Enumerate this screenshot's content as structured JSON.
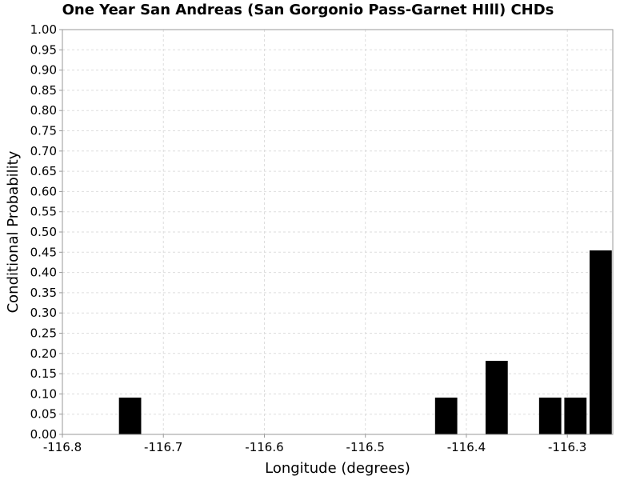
{
  "chart_data": {
    "type": "bar",
    "title": "One Year San Andreas (San Gorgonio Pass-Garnet HIll) CHDs",
    "xlabel": "Longitude (degrees)",
    "ylabel": "Conditional Probability",
    "xlim": [
      -116.8,
      -116.255
    ],
    "ylim": [
      0,
      1.0
    ],
    "grid": true,
    "bar_color": "#000000",
    "bar_width": 0.022,
    "x_ticks": [
      "-116.8",
      "-116.7",
      "-116.6",
      "-116.5",
      "-116.4",
      "-116.3"
    ],
    "y_ticks": [
      "0.00",
      "0.05",
      "0.10",
      "0.15",
      "0.20",
      "0.25",
      "0.30",
      "0.35",
      "0.40",
      "0.45",
      "0.50",
      "0.55",
      "0.60",
      "0.65",
      "0.70",
      "0.75",
      "0.80",
      "0.85",
      "0.90",
      "0.95",
      "1.00"
    ],
    "bars": [
      {
        "x": -116.733,
        "value": 0.0909
      },
      {
        "x": -116.42,
        "value": 0.0909
      },
      {
        "x": -116.37,
        "value": 0.1818
      },
      {
        "x": -116.317,
        "value": 0.0909
      },
      {
        "x": -116.292,
        "value": 0.0909
      },
      {
        "x": -116.267,
        "value": 0.4545
      }
    ]
  }
}
